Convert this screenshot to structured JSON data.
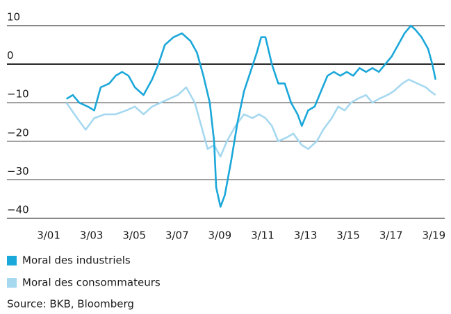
{
  "chart_data": {
    "type": "line",
    "source": "Source: BKB, Bloomberg",
    "xlim": [
      1999.22,
      2019.68
    ],
    "xticks": [
      {
        "value": 2001.17,
        "label": "3/01"
      },
      {
        "value": 2003.17,
        "label": "3/03"
      },
      {
        "value": 2005.17,
        "label": "3/05"
      },
      {
        "value": 2007.17,
        "label": "3/07"
      },
      {
        "value": 2009.17,
        "label": "3/09"
      },
      {
        "value": 2011.17,
        "label": "3/11"
      },
      {
        "value": 2013.17,
        "label": "3/13"
      },
      {
        "value": 2015.17,
        "label": "3/15"
      },
      {
        "value": 2017.17,
        "label": "3/17"
      },
      {
        "value": 2019.17,
        "label": "3/19"
      }
    ],
    "ylim": [
      -40,
      10
    ],
    "yticks": [
      10,
      0,
      {
        "value": -10,
        "label": "−10"
      },
      {
        "value": -20,
        "label": "−20"
      },
      {
        "value": -30,
        "label": "−30"
      },
      {
        "value": -40,
        "label": "−40"
      }
    ],
    "grid": true,
    "series": [
      {
        "name": "Moral des industriels",
        "color": "#1aa7d9",
        "x": [
          2002.0,
          2002.3,
          2002.6,
          2003.0,
          2003.3,
          2003.6,
          2004.0,
          2004.3,
          2004.6,
          2004.9,
          2005.2,
          2005.6,
          2006.0,
          2006.3,
          2006.6,
          2007.0,
          2007.4,
          2007.8,
          2008.1,
          2008.4,
          2008.7,
          2008.9,
          2009.0,
          2009.2,
          2009.4,
          2009.7,
          2010.0,
          2010.3,
          2010.6,
          2010.9,
          2011.1,
          2011.3,
          2011.6,
          2011.9,
          2012.2,
          2012.5,
          2012.8,
          2013.0,
          2013.3,
          2013.6,
          2013.9,
          2014.2,
          2014.5,
          2014.8,
          2015.1,
          2015.4,
          2015.7,
          2016.0,
          2016.3,
          2016.6,
          2016.9,
          2017.2,
          2017.5,
          2017.8,
          2018.1,
          2018.3,
          2018.6,
          2018.9,
          2019.1,
          2019.25
        ],
        "values": [
          -9,
          -8,
          -10,
          -11,
          -12,
          -6,
          -5,
          -3,
          -2,
          -3,
          -6,
          -8,
          -4,
          0,
          5,
          7,
          8,
          6,
          3,
          -3,
          -10,
          -20,
          -32,
          -37,
          -34,
          -25,
          -15,
          -7,
          -2,
          3,
          7,
          7,
          0,
          -5,
          -5,
          -10,
          -13,
          -16,
          -12,
          -11,
          -7,
          -3,
          -2,
          -3,
          -2,
          -3,
          -1,
          -2,
          -1,
          -2,
          0,
          2,
          5,
          8,
          10,
          9,
          7,
          4,
          0,
          -4
        ]
      },
      {
        "name": "Moral des consommateurs",
        "color": "#a6d8f0",
        "x": [
          2002.0,
          2002.5,
          2002.9,
          2003.3,
          2003.8,
          2004.3,
          2004.8,
          2005.2,
          2005.6,
          2006.0,
          2006.4,
          2006.8,
          2007.2,
          2007.6,
          2008.0,
          2008.3,
          2008.6,
          2008.9,
          2009.2,
          2009.5,
          2009.9,
          2010.3,
          2010.7,
          2011.0,
          2011.3,
          2011.6,
          2011.9,
          2012.3,
          2012.6,
          2013.0,
          2013.3,
          2013.7,
          2014.0,
          2014.4,
          2014.7,
          2015.0,
          2015.3,
          2015.6,
          2016.0,
          2016.3,
          2016.6,
          2017.0,
          2017.3,
          2017.7,
          2018.0,
          2018.4,
          2018.8,
          2019.0,
          2019.25
        ],
        "values": [
          -10,
          -14,
          -17,
          -14,
          -13,
          -13,
          -12,
          -11,
          -13,
          -11,
          -10,
          -9,
          -8,
          -6,
          -10,
          -16,
          -22,
          -21,
          -24,
          -20,
          -16,
          -13,
          -14,
          -13,
          -14,
          -16,
          -20,
          -19,
          -18,
          -21,
          -22,
          -20,
          -17,
          -14,
          -11,
          -12,
          -10,
          -9,
          -8,
          -10,
          -9,
          -8,
          -7,
          -5,
          -4,
          -5,
          -6,
          -7,
          -8
        ]
      }
    ]
  }
}
